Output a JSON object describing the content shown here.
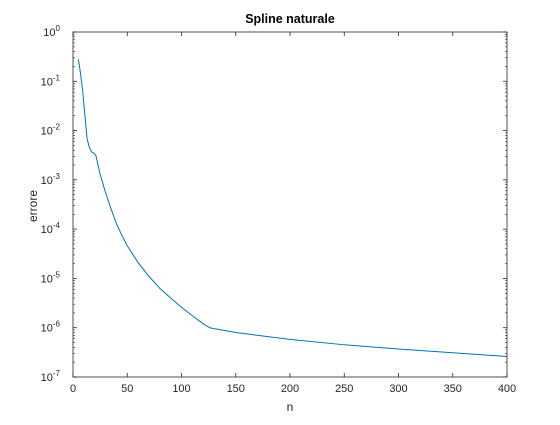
{
  "chart_data": {
    "type": "line",
    "title": "Spline naturale",
    "xlabel": "n",
    "ylabel": "errore",
    "yscale": "log",
    "xlim": [
      0,
      400
    ],
    "ylim": [
      1e-07,
      1
    ],
    "grid": false,
    "box": true,
    "xticks": [
      0,
      50,
      100,
      150,
      200,
      250,
      300,
      350,
      400
    ],
    "xtick_labels": [
      "0",
      "50",
      "100",
      "150",
      "200",
      "250",
      "300",
      "350",
      "400"
    ],
    "yticks": [
      {
        "value": 1e-07,
        "base": "10",
        "exp": "-7"
      },
      {
        "value": 1e-06,
        "base": "10",
        "exp": "-6"
      },
      {
        "value": 1e-05,
        "base": "10",
        "exp": "-5"
      },
      {
        "value": 0.0001,
        "base": "10",
        "exp": "-4"
      },
      {
        "value": 0.001,
        "base": "10",
        "exp": "-3"
      },
      {
        "value": 0.01,
        "base": "10",
        "exp": "-2"
      },
      {
        "value": 0.1,
        "base": "10",
        "exp": "-1"
      },
      {
        "value": 1,
        "base": "10",
        "exp": "0"
      }
    ],
    "series": [
      {
        "color": "#0072BD",
        "x": [
          5,
          7,
          9,
          11,
          13,
          15,
          17,
          19,
          21,
          25,
          30,
          35,
          40,
          45,
          50,
          60,
          70,
          80,
          90,
          100,
          110,
          120,
          126,
          130,
          150,
          175,
          200,
          250,
          300,
          350,
          400
        ],
        "y": [
          0.28,
          0.14,
          0.06,
          0.02,
          0.0068,
          0.0046,
          0.0037,
          0.0035,
          0.0032,
          0.0013,
          0.00055,
          0.00026,
          0.00013,
          7.5e-05,
          4.6e-05,
          2.1e-05,
          1.1e-05,
          6.3e-06,
          4e-06,
          2.6e-06,
          1.75e-06,
          1.2e-06,
          1e-06,
          9.6e-07,
          8e-07,
          6.8e-07,
          5.8e-07,
          4.5e-07,
          3.7e-07,
          3.1e-07,
          2.6e-07
        ]
      }
    ]
  }
}
